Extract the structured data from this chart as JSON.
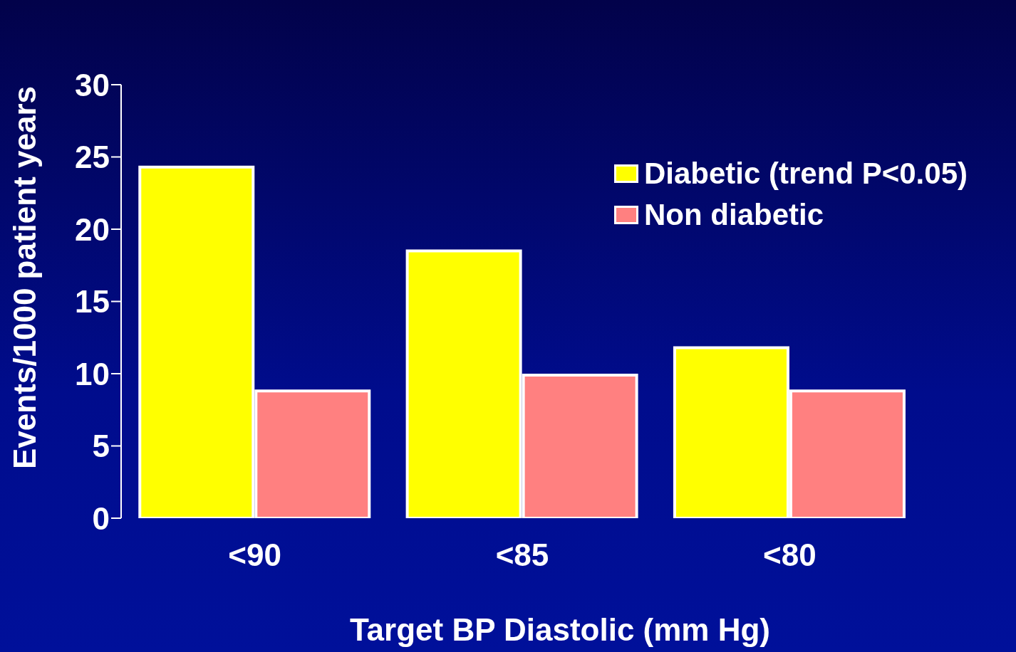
{
  "chart_data": {
    "type": "bar",
    "xlabel": "Target BP Diastolic (mm Hg)",
    "ylabel": "Events/1000 patient years",
    "categories": [
      "<90",
      "<85",
      "<80"
    ],
    "series": [
      {
        "name": "Diabetic (trend P<0.05)",
        "color": "#ffff00",
        "values": [
          24.3,
          18.5,
          11.8
        ]
      },
      {
        "name": "Non diabetic",
        "color": "#ff8080",
        "values": [
          8.8,
          9.9,
          8.8
        ]
      }
    ],
    "ylim": [
      0,
      30
    ],
    "yticks": [
      0,
      5,
      10,
      15,
      20,
      25,
      30
    ],
    "legend": "top right"
  }
}
